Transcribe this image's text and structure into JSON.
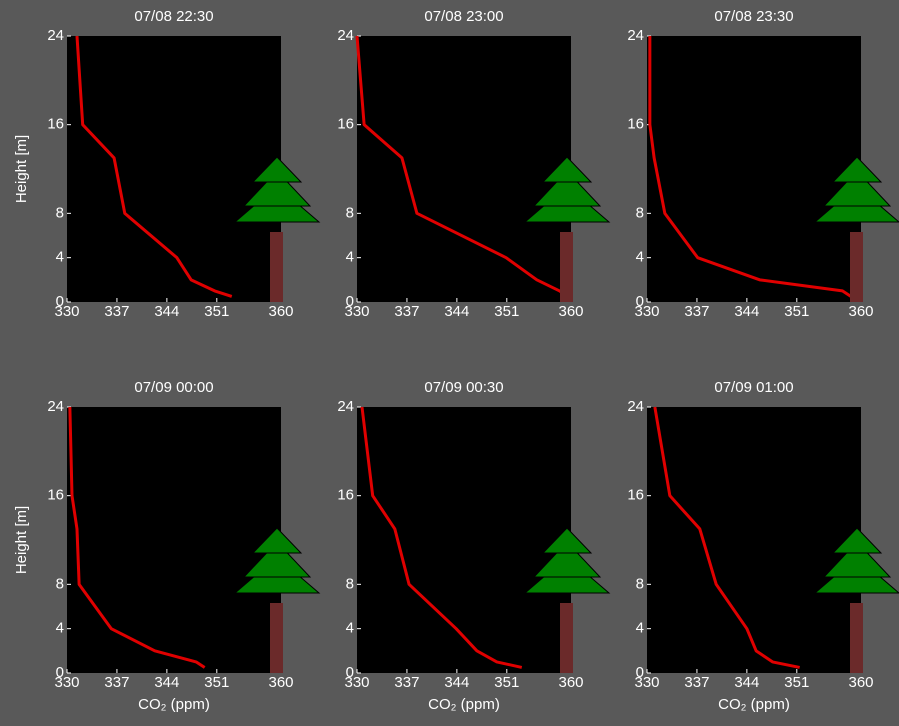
{
  "chart_data": [
    {
      "type": "line",
      "title": "07/08 22:30",
      "ylabel": "Height [m]",
      "xlim": [
        330,
        360
      ],
      "xticks": [
        330,
        337,
        344,
        351,
        360
      ],
      "ylim": [
        0,
        24
      ],
      "yticks": [
        0,
        4,
        8,
        16,
        24
      ],
      "color": "#e00000",
      "x": [
        331.4,
        332.2,
        336.6,
        338.1,
        345.4,
        347.4,
        350.7,
        353.1
      ],
      "values": [
        24,
        16,
        13,
        8,
        4,
        2,
        1,
        0.5
      ]
    },
    {
      "type": "line",
      "title": "07/08 23:00",
      "xlim": [
        330,
        360
      ],
      "xticks": [
        330,
        337,
        344,
        351,
        360
      ],
      "ylim": [
        0,
        24
      ],
      "yticks": [
        0,
        4,
        8,
        16,
        24
      ],
      "color": "#e00000",
      "x": [
        330,
        331,
        336.3,
        338.4,
        350.9,
        355.2,
        358.4,
        359.5
      ],
      "values": [
        24,
        16,
        13,
        8,
        4,
        2,
        1,
        0.5
      ]
    },
    {
      "type": "line",
      "title": "07/08 23:30",
      "xlim": [
        330,
        360
      ],
      "xticks": [
        330,
        337,
        344,
        351,
        360
      ],
      "ylim": [
        0,
        24
      ],
      "yticks": [
        0,
        4,
        8,
        16,
        24
      ],
      "color": "#e00000",
      "x": [
        330.4,
        330.4,
        331,
        332.5,
        337.1,
        345.8,
        357.4,
        358.6
      ],
      "values": [
        24,
        16,
        13,
        8,
        4,
        2,
        1,
        0.5
      ]
    },
    {
      "type": "line",
      "title": "07/09 00:00",
      "ylabel": "Height [m]",
      "xlabel": "CO₂ (ppm)",
      "xlim": [
        330,
        360
      ],
      "xticks": [
        330,
        337,
        344,
        351,
        360
      ],
      "ylim": [
        0,
        24
      ],
      "yticks": [
        0,
        4,
        8,
        16,
        24
      ],
      "color": "#e00000",
      "x": [
        330.4,
        330.7,
        331.4,
        331.7,
        336.2,
        342.3,
        348.1,
        349.3
      ],
      "values": [
        24,
        16,
        13,
        8,
        4,
        2,
        1,
        0.5
      ]
    },
    {
      "type": "line",
      "title": "07/09 00:30",
      "xlabel": "CO₂ (ppm)",
      "xlim": [
        330,
        360
      ],
      "xticks": [
        330,
        337,
        344,
        351,
        360
      ],
      "ylim": [
        0,
        24
      ],
      "yticks": [
        0,
        4,
        8,
        16,
        24
      ],
      "color": "#e00000",
      "x": [
        330.7,
        332.2,
        335.3,
        337.3,
        343.9,
        346.8,
        349.6,
        353.1
      ],
      "values": [
        24,
        16,
        13,
        8,
        4,
        2,
        1,
        0.5
      ]
    },
    {
      "type": "line",
      "title": "07/09 01:00",
      "xlabel": "CO₂ (ppm)",
      "xlim": [
        330,
        360
      ],
      "xticks": [
        330,
        337,
        344,
        351,
        360
      ],
      "ylim": [
        0,
        24
      ],
      "yticks": [
        0,
        4,
        8,
        16,
        24
      ],
      "color": "#e00000",
      "x": [
        331.1,
        333.2,
        337.4,
        339.7,
        344,
        345.3,
        347.6,
        351.4
      ],
      "values": [
        24,
        16,
        13,
        8,
        4,
        2,
        1,
        0.5
      ]
    }
  ]
}
